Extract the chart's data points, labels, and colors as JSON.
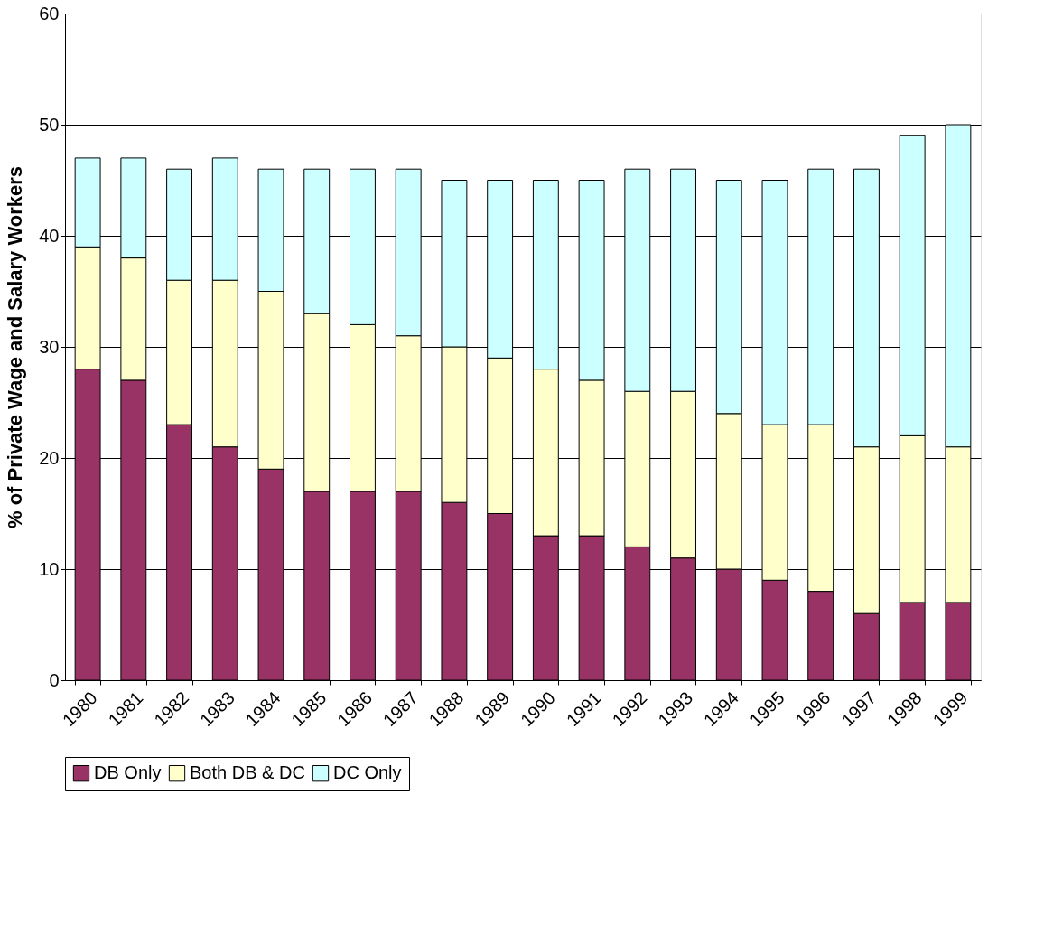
{
  "chart_data": {
    "type": "bar",
    "stacked": true,
    "ylabel": "% of Private Wage and Salary Workers",
    "categories": [
      "1980",
      "1981",
      "1982",
      "1983",
      "1984",
      "1985",
      "1986",
      "1987",
      "1988",
      "1989",
      "1990",
      "1991",
      "1992",
      "1993",
      "1994",
      "1995",
      "1996",
      "1997",
      "1998",
      "1999"
    ],
    "series": [
      {
        "name": "DB Only",
        "color": "#993366",
        "values": [
          28,
          27,
          23,
          21,
          19,
          17,
          17,
          17,
          16,
          15,
          13,
          13,
          12,
          11,
          10,
          9,
          8,
          6,
          7,
          7
        ]
      },
      {
        "name": "Both DB & DC",
        "color": "#ffffcc",
        "values": [
          11,
          11,
          13,
          15,
          16,
          16,
          15,
          14,
          14,
          14,
          15,
          14,
          14,
          15,
          14,
          14,
          15,
          15,
          15,
          14
        ]
      },
      {
        "name": "DC Only",
        "color": "#ccffff",
        "values": [
          8,
          9,
          10,
          11,
          11,
          13,
          14,
          15,
          15,
          16,
          17,
          18,
          20,
          20,
          21,
          22,
          23,
          25,
          27,
          29
        ]
      }
    ],
    "ylim": [
      0,
      60
    ],
    "yticks": [
      0,
      10,
      20,
      30,
      40,
      50,
      60
    ],
    "grid": "y",
    "legend": "bottom"
  }
}
